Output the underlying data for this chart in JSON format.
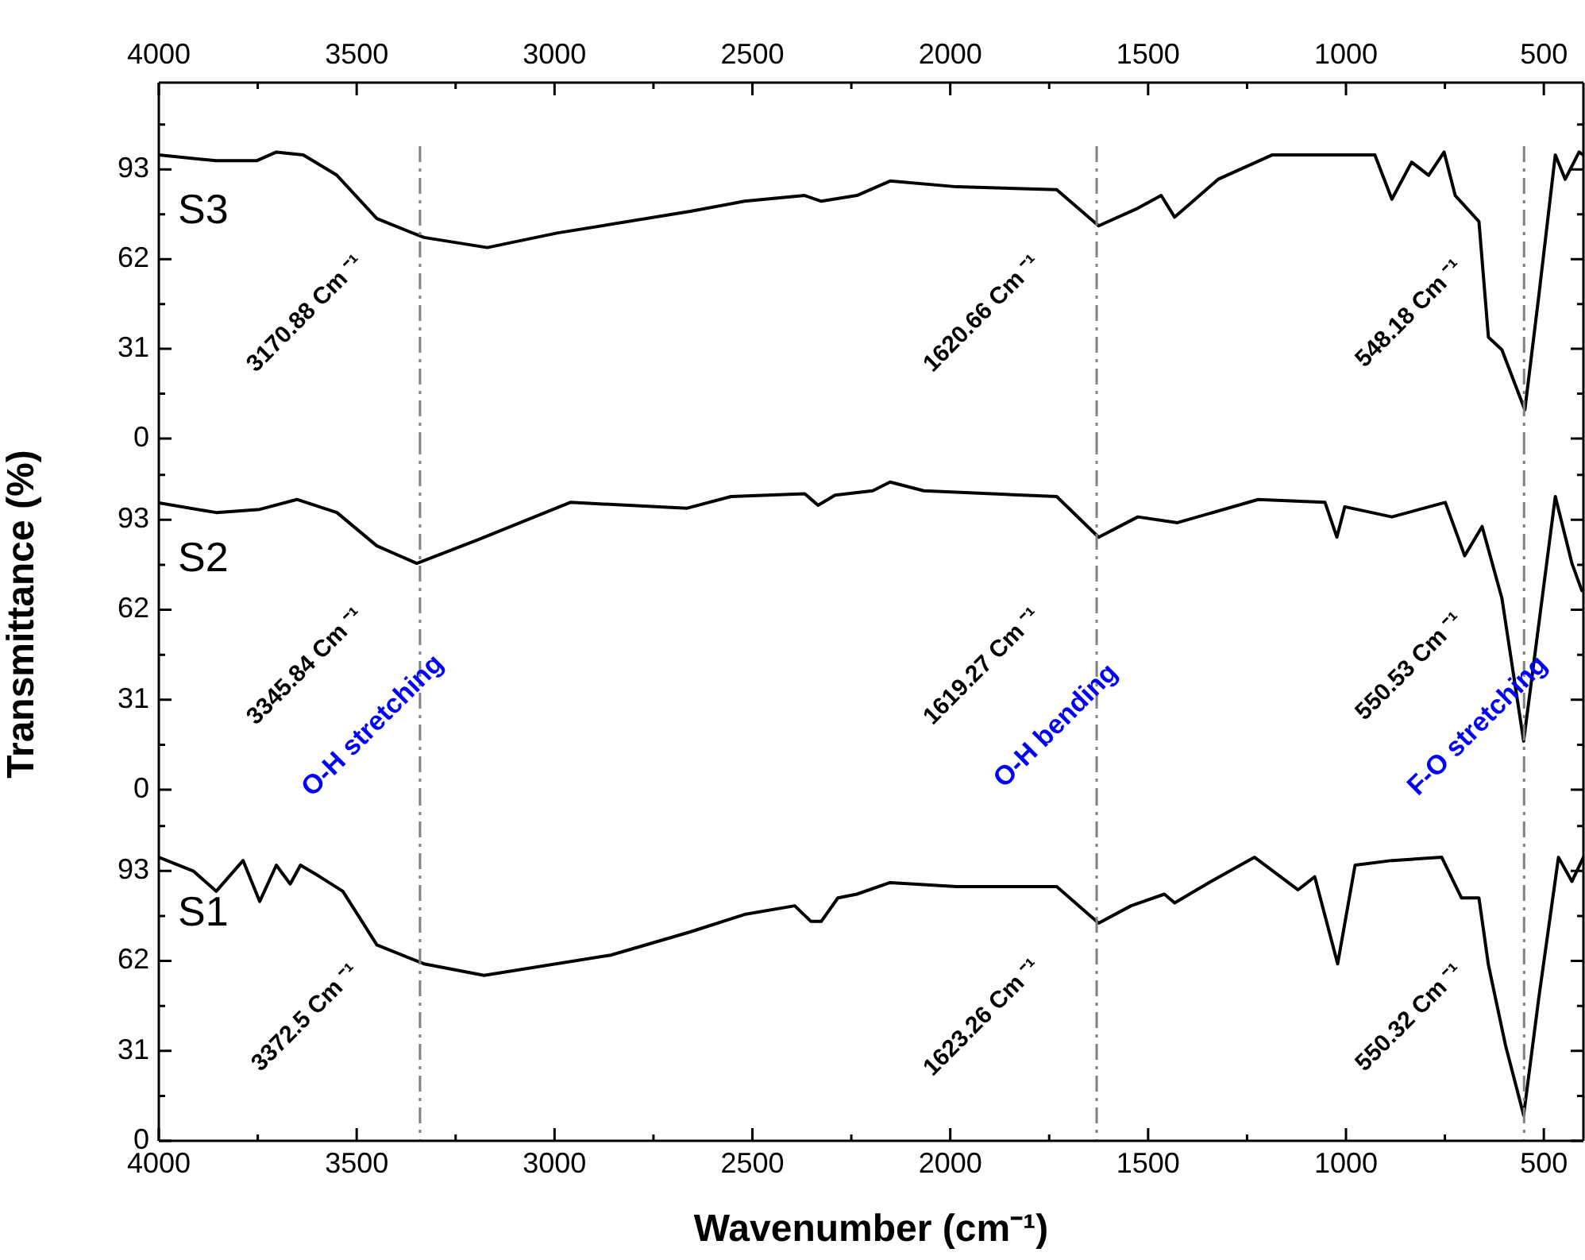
{
  "chart_data": [
    {
      "type": "line",
      "xlim": [
        4000,
        400
      ],
      "x2lim": [
        4000,
        400
      ],
      "x2ticks": [
        4000,
        {
          "value": 3750,
          "label": null
        },
        3500,
        {
          "value": 3250,
          "label": null
        },
        3000,
        {
          "value": 2750,
          "label": null
        },
        2500,
        {
          "value": 2250,
          "label": null
        },
        2000,
        {
          "value": 1750,
          "label": null
        },
        1500,
        {
          "value": 1250,
          "label": null
        },
        1000,
        {
          "value": 750,
          "label": null
        },
        500
      ],
      "ylim": [
        0,
        123
      ],
      "yticks": [
        0,
        {
          "value": 15.5,
          "label": null
        },
        31,
        {
          "value": 46.5,
          "label": null
        },
        62,
        {
          "value": 77.5,
          "label": null
        },
        93,
        {
          "value": 108.5,
          "label": null
        }
      ],
      "tick_labels": "y",
      "grid": false,
      "legend": false,
      "marker": "none",
      "line_style": "solid",
      "series": [
        {
          "name": "S3",
          "color": "#000000",
          "x": [
            4000,
            3855,
            3753,
            3703,
            3635,
            3550,
            3449,
            3330,
            3170,
            2994,
            2657,
            2520,
            2368,
            2326,
            2236,
            2152,
            1984,
            1731,
            1625,
            1526,
            1467,
            1433,
            1323,
            1187,
            927,
            884,
            834,
            791,
            752,
            724,
            664,
            640,
            606,
            548,
            513,
            471,
            446,
            411,
            400
          ],
          "values": [
            98,
            96,
            96,
            99,
            98,
            91,
            76,
            69.5,
            66,
            71,
            78.5,
            82,
            84,
            82,
            84,
            89,
            87,
            86,
            73.5,
            79.6,
            84,
            76.5,
            89.6,
            98,
            98,
            82.7,
            95.5,
            91,
            99,
            84,
            75,
            35,
            30.7,
            9.9,
            49,
            98,
            89.6,
            99,
            98
          ]
        }
      ],
      "ref_lines": [
        {
          "axis": "x",
          "value": 3340,
          "color": "#808080",
          "line_style": "dashed"
        },
        {
          "axis": "x",
          "value": 1630,
          "color": "#808080",
          "line_style": "dashed"
        },
        {
          "axis": "x",
          "value": 550,
          "color": "#808080",
          "line_style": "dashed"
        }
      ],
      "annotations": [
        "3170.88 Cm ⁻¹",
        "1620.66 Cm ⁻¹",
        "548.18 Cm ⁻¹"
      ]
    },
    {
      "type": "line",
      "xlim": [
        4000,
        400
      ],
      "ylim": [
        0,
        121
      ],
      "yticks": [
        0,
        {
          "value": 15.5,
          "label": null
        },
        31,
        {
          "value": 46.5,
          "label": null
        },
        62,
        {
          "value": 77.5,
          "label": null
        },
        93,
        {
          "value": 108.5,
          "label": null
        }
      ],
      "ylabel": "Transmittance (%)",
      "tick_labels": "y",
      "grid": false,
      "legend": false,
      "marker": "none",
      "line_style": "solid",
      "series": [
        {
          "name": "S2",
          "color": "#000000",
          "x": [
            4000,
            3855,
            3745,
            3651,
            3550,
            3449,
            3348,
            3196,
            2960,
            2665,
            2554,
            2368,
            2334,
            2291,
            2196,
            2152,
            2067,
            1731,
            1625,
            1526,
            1426,
            1222,
            1053,
            1023,
            1003,
            884,
            749,
            700,
            656,
            606,
            551,
            471,
            429,
            404
          ],
          "values": [
            98.8,
            95.5,
            96.6,
            100,
            95.5,
            84,
            78,
            86,
            99,
            97,
            101,
            102,
            98,
            101.5,
            103,
            106,
            103,
            101,
            87,
            94,
            92,
            100,
            99,
            87,
            97.5,
            94,
            99,
            80.6,
            90.7,
            66,
            16.7,
            101,
            78,
            68.6
          ]
        }
      ],
      "ref_lines": [
        {
          "axis": "x",
          "value": 3340,
          "color": "#808080",
          "line_style": "dashed",
          "label": "O-H stretching"
        },
        {
          "axis": "x",
          "value": 1630,
          "color": "#808080",
          "line_style": "dashed",
          "label": "O-H bending"
        },
        {
          "axis": "x",
          "value": 550,
          "color": "#808080",
          "line_style": "dashed",
          "label": "F-O stretching"
        }
      ],
      "annotations": [
        "3345.84 Cm ⁻¹",
        "1619.27 Cm ⁻¹",
        "550.53 Cm ⁻¹"
      ]
    },
    {
      "type": "line",
      "xlim": [
        4000,
        400
      ],
      "xticks": [
        4000,
        {
          "value": 3750,
          "label": null
        },
        3500,
        {
          "value": 3250,
          "label": null
        },
        3000,
        {
          "value": 2750,
          "label": null
        },
        2500,
        {
          "value": 2250,
          "label": null
        },
        2000,
        {
          "value": 1750,
          "label": null
        },
        1500,
        {
          "value": 1250,
          "label": null
        },
        1000,
        {
          "value": 750,
          "label": null
        },
        500
      ],
      "ylim": [
        0,
        121
      ],
      "yticks": [
        0,
        {
          "value": 15.5,
          "label": null
        },
        31,
        {
          "value": 46.5,
          "label": null
        },
        62,
        {
          "value": 77.5,
          "label": null
        },
        93,
        {
          "value": 108.5,
          "label": null
        }
      ],
      "xlabel": "Wavenumber (cm⁻¹)",
      "grid": false,
      "legend": false,
      "marker": "none",
      "line_style": "solid",
      "series": [
        {
          "name": "S1",
          "color": "#000000",
          "x": [
            4000,
            3913,
            3855,
            3787,
            3745,
            3703,
            3668,
            3642,
            3593,
            3535,
            3449,
            3330,
            3178,
            2858,
            2657,
            2520,
            2393,
            2352,
            2326,
            2284,
            2236,
            2152,
            1984,
            1731,
            1625,
            1543,
            1459,
            1433,
            1341,
            1231,
            1121,
            1079,
            1021,
            977,
            884,
            758,
            708,
            664,
            640,
            597,
            551,
            513,
            463,
            429,
            400
          ],
          "values": [
            97.7,
            93,
            86,
            96.6,
            82.5,
            95,
            88.5,
            95,
            91,
            86,
            67.5,
            61,
            57,
            64,
            72,
            78,
            81,
            75.6,
            75.6,
            83.7,
            85,
            89,
            87.6,
            87.6,
            75,
            81,
            85,
            82,
            89.4,
            97.7,
            86.5,
            91,
            61,
            95,
            96.6,
            97.7,
            83.7,
            83.7,
            60.6,
            33,
            8.8,
            49,
            97.7,
            89.4,
            97.7
          ]
        }
      ],
      "ref_lines": [
        {
          "axis": "x",
          "value": 3340,
          "color": "#808080",
          "line_style": "dashed"
        },
        {
          "axis": "x",
          "value": 1630,
          "color": "#808080",
          "line_style": "dashed"
        },
        {
          "axis": "x",
          "value": 550,
          "color": "#808080",
          "line_style": "dashed"
        }
      ],
      "annotations": [
        "3372.5 Cm ⁻¹",
        "1623.26 Cm ⁻¹",
        "550.32 Cm ⁻¹"
      ]
    }
  ]
}
